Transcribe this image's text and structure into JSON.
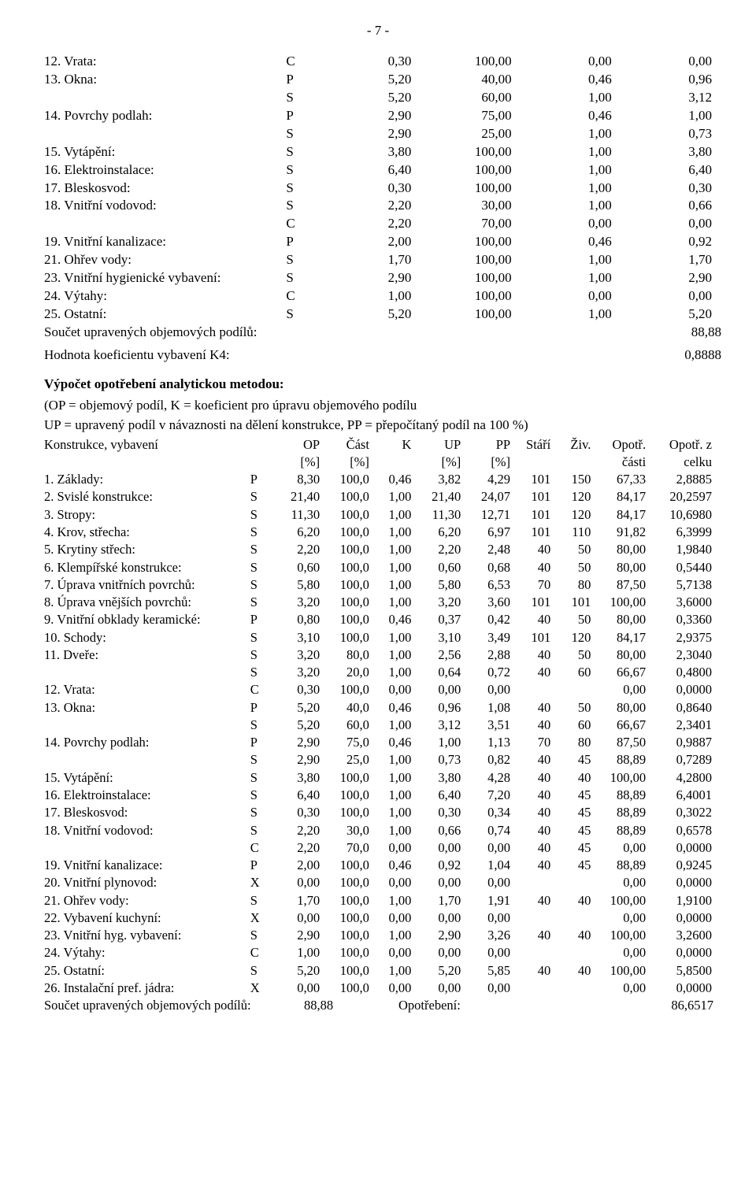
{
  "page_number": "- 7 -",
  "table1_rows": [
    {
      "label": "12. Vrata:",
      "code": "C",
      "v1": "0,30",
      "v2": "100,00",
      "v3": "0,00",
      "v4": "0,00"
    },
    {
      "label": "13. Okna:",
      "code": "P",
      "v1": "5,20",
      "v2": "40,00",
      "v3": "0,46",
      "v4": "0,96"
    },
    {
      "label": "",
      "code": "S",
      "v1": "5,20",
      "v2": "60,00",
      "v3": "1,00",
      "v4": "3,12"
    },
    {
      "label": "14. Povrchy podlah:",
      "code": "P",
      "v1": "2,90",
      "v2": "75,00",
      "v3": "0,46",
      "v4": "1,00"
    },
    {
      "label": "",
      "code": "S",
      "v1": "2,90",
      "v2": "25,00",
      "v3": "1,00",
      "v4": "0,73"
    },
    {
      "label": "15. Vytápění:",
      "code": "S",
      "v1": "3,80",
      "v2": "100,00",
      "v3": "1,00",
      "v4": "3,80"
    },
    {
      "label": "16. Elektroinstalace:",
      "code": "S",
      "v1": "6,40",
      "v2": "100,00",
      "v3": "1,00",
      "v4": "6,40"
    },
    {
      "label": "17. Bleskosvod:",
      "code": "S",
      "v1": "0,30",
      "v2": "100,00",
      "v3": "1,00",
      "v4": "0,30"
    },
    {
      "label": "18. Vnitřní vodovod:",
      "code": "S",
      "v1": "2,20",
      "v2": "30,00",
      "v3": "1,00",
      "v4": "0,66"
    },
    {
      "label": "",
      "code": "C",
      "v1": "2,20",
      "v2": "70,00",
      "v3": "0,00",
      "v4": "0,00"
    },
    {
      "label": "19. Vnitřní kanalizace:",
      "code": "P",
      "v1": "2,00",
      "v2": "100,00",
      "v3": "0,46",
      "v4": "0,92"
    },
    {
      "label": "21. Ohřev vody:",
      "code": "S",
      "v1": "1,70",
      "v2": "100,00",
      "v3": "1,00",
      "v4": "1,70"
    },
    {
      "label": "23. Vnitřní hygienické vybavení:",
      "code": "S",
      "v1": "2,90",
      "v2": "100,00",
      "v3": "1,00",
      "v4": "2,90"
    },
    {
      "label": "24. Výtahy:",
      "code": "C",
      "v1": "1,00",
      "v2": "100,00",
      "v3": "0,00",
      "v4": "0,00"
    },
    {
      "label": "25. Ostatní:",
      "code": "S",
      "v1": "5,20",
      "v2": "100,00",
      "v3": "1,00",
      "v4": "5,20"
    }
  ],
  "sum_line1_label": "Součet upravených objemových podílů:",
  "sum_line1_value": "88,88",
  "k4_label": "Hodnota koeficientu vybavení K4:",
  "k4_value": "0,8888",
  "calc_title": "Výpočet opotřebení analytickou metodou:",
  "note_line1": "(OP = objemový podíl, K = koeficient pro úpravu objemového podílu",
  "note_line2": "UP = upravený podíl v návaznosti na dělení konstrukce, PP = přepočítaný podíl na 100 %)",
  "t2_header1": [
    "Konstrukce, vybavení",
    "",
    "OP",
    "Část",
    "K",
    "UP",
    "PP",
    "Stáří",
    "Živ.",
    "Opotř.",
    "Opotř. z"
  ],
  "t2_header2": [
    "",
    "",
    "[%]",
    "[%]",
    "",
    "[%]",
    "[%]",
    "",
    "",
    "části",
    "celku"
  ],
  "table2_rows": [
    {
      "label": "1. Základy:",
      "code": "P",
      "op": "8,30",
      "cast": "100,0",
      "k": "0,46",
      "up": "3,82",
      "pp": "4,29",
      "stari": "101",
      "ziv": "150",
      "opotrc": "67,33",
      "opotrz": "2,8885"
    },
    {
      "label": "2. Svislé konstrukce:",
      "code": "S",
      "op": "21,40",
      "cast": "100,0",
      "k": "1,00",
      "up": "21,40",
      "pp": "24,07",
      "stari": "101",
      "ziv": "120",
      "opotrc": "84,17",
      "opotrz": "20,2597"
    },
    {
      "label": "3. Stropy:",
      "code": "S",
      "op": "11,30",
      "cast": "100,0",
      "k": "1,00",
      "up": "11,30",
      "pp": "12,71",
      "stari": "101",
      "ziv": "120",
      "opotrc": "84,17",
      "opotrz": "10,6980"
    },
    {
      "label": "4. Krov, střecha:",
      "code": "S",
      "op": "6,20",
      "cast": "100,0",
      "k": "1,00",
      "up": "6,20",
      "pp": "6,97",
      "stari": "101",
      "ziv": "110",
      "opotrc": "91,82",
      "opotrz": "6,3999"
    },
    {
      "label": "5. Krytiny střech:",
      "code": "S",
      "op": "2,20",
      "cast": "100,0",
      "k": "1,00",
      "up": "2,20",
      "pp": "2,48",
      "stari": "40",
      "ziv": "50",
      "opotrc": "80,00",
      "opotrz": "1,9840"
    },
    {
      "label": "6. Klempířské konstrukce:",
      "code": "S",
      "op": "0,60",
      "cast": "100,0",
      "k": "1,00",
      "up": "0,60",
      "pp": "0,68",
      "stari": "40",
      "ziv": "50",
      "opotrc": "80,00",
      "opotrz": "0,5440"
    },
    {
      "label": "7. Úprava vnitřních povrchů:",
      "code": "S",
      "op": "5,80",
      "cast": "100,0",
      "k": "1,00",
      "up": "5,80",
      "pp": "6,53",
      "stari": "70",
      "ziv": "80",
      "opotrc": "87,50",
      "opotrz": "5,7138"
    },
    {
      "label": "8. Úprava vnějších povrchů:",
      "code": "S",
      "op": "3,20",
      "cast": "100,0",
      "k": "1,00",
      "up": "3,20",
      "pp": "3,60",
      "stari": "101",
      "ziv": "101",
      "opotrc": "100,00",
      "opotrz": "3,6000"
    },
    {
      "label": "9. Vnitřní obklady keramické:",
      "code": "P",
      "op": "0,80",
      "cast": "100,0",
      "k": "0,46",
      "up": "0,37",
      "pp": "0,42",
      "stari": "40",
      "ziv": "50",
      "opotrc": "80,00",
      "opotrz": "0,3360"
    },
    {
      "label": "10. Schody:",
      "code": "S",
      "op": "3,10",
      "cast": "100,0",
      "k": "1,00",
      "up": "3,10",
      "pp": "3,49",
      "stari": "101",
      "ziv": "120",
      "opotrc": "84,17",
      "opotrz": "2,9375"
    },
    {
      "label": "11. Dveře:",
      "code": "S",
      "op": "3,20",
      "cast": "80,0",
      "k": "1,00",
      "up": "2,56",
      "pp": "2,88",
      "stari": "40",
      "ziv": "50",
      "opotrc": "80,00",
      "opotrz": "2,3040"
    },
    {
      "label": "",
      "code": "S",
      "op": "3,20",
      "cast": "20,0",
      "k": "1,00",
      "up": "0,64",
      "pp": "0,72",
      "stari": "40",
      "ziv": "60",
      "opotrc": "66,67",
      "opotrz": "0,4800"
    },
    {
      "label": "12. Vrata:",
      "code": "C",
      "op": "0,30",
      "cast": "100,0",
      "k": "0,00",
      "up": "0,00",
      "pp": "0,00",
      "stari": "",
      "ziv": "",
      "opotrc": "0,00",
      "opotrz": "0,0000"
    },
    {
      "label": "13. Okna:",
      "code": "P",
      "op": "5,20",
      "cast": "40,0",
      "k": "0,46",
      "up": "0,96",
      "pp": "1,08",
      "stari": "40",
      "ziv": "50",
      "opotrc": "80,00",
      "opotrz": "0,8640"
    },
    {
      "label": "",
      "code": "S",
      "op": "5,20",
      "cast": "60,0",
      "k": "1,00",
      "up": "3,12",
      "pp": "3,51",
      "stari": "40",
      "ziv": "60",
      "opotrc": "66,67",
      "opotrz": "2,3401"
    },
    {
      "label": "14. Povrchy podlah:",
      "code": "P",
      "op": "2,90",
      "cast": "75,0",
      "k": "0,46",
      "up": "1,00",
      "pp": "1,13",
      "stari": "70",
      "ziv": "80",
      "opotrc": "87,50",
      "opotrz": "0,9887"
    },
    {
      "label": "",
      "code": "S",
      "op": "2,90",
      "cast": "25,0",
      "k": "1,00",
      "up": "0,73",
      "pp": "0,82",
      "stari": "40",
      "ziv": "45",
      "opotrc": "88,89",
      "opotrz": "0,7289"
    },
    {
      "label": "15. Vytápění:",
      "code": "S",
      "op": "3,80",
      "cast": "100,0",
      "k": "1,00",
      "up": "3,80",
      "pp": "4,28",
      "stari": "40",
      "ziv": "40",
      "opotrc": "100,00",
      "opotrz": "4,2800"
    },
    {
      "label": "16. Elektroinstalace:",
      "code": "S",
      "op": "6,40",
      "cast": "100,0",
      "k": "1,00",
      "up": "6,40",
      "pp": "7,20",
      "stari": "40",
      "ziv": "45",
      "opotrc": "88,89",
      "opotrz": "6,4001"
    },
    {
      "label": "17. Bleskosvod:",
      "code": "S",
      "op": "0,30",
      "cast": "100,0",
      "k": "1,00",
      "up": "0,30",
      "pp": "0,34",
      "stari": "40",
      "ziv": "45",
      "opotrc": "88,89",
      "opotrz": "0,3022"
    },
    {
      "label": "18. Vnitřní vodovod:",
      "code": "S",
      "op": "2,20",
      "cast": "30,0",
      "k": "1,00",
      "up": "0,66",
      "pp": "0,74",
      "stari": "40",
      "ziv": "45",
      "opotrc": "88,89",
      "opotrz": "0,6578"
    },
    {
      "label": "",
      "code": "C",
      "op": "2,20",
      "cast": "70,0",
      "k": "0,00",
      "up": "0,00",
      "pp": "0,00",
      "stari": "40",
      "ziv": "45",
      "opotrc": "0,00",
      "opotrz": "0,0000"
    },
    {
      "label": "19. Vnitřní kanalizace:",
      "code": "P",
      "op": "2,00",
      "cast": "100,0",
      "k": "0,46",
      "up": "0,92",
      "pp": "1,04",
      "stari": "40",
      "ziv": "45",
      "opotrc": "88,89",
      "opotrz": "0,9245"
    },
    {
      "label": "20. Vnitřní plynovod:",
      "code": "X",
      "op": "0,00",
      "cast": "100,0",
      "k": "0,00",
      "up": "0,00",
      "pp": "0,00",
      "stari": "",
      "ziv": "",
      "opotrc": "0,00",
      "opotrz": "0,0000"
    },
    {
      "label": "21. Ohřev vody:",
      "code": "S",
      "op": "1,70",
      "cast": "100,0",
      "k": "1,00",
      "up": "1,70",
      "pp": "1,91",
      "stari": "40",
      "ziv": "40",
      "opotrc": "100,00",
      "opotrz": "1,9100"
    },
    {
      "label": "22. Vybavení kuchyní:",
      "code": "X",
      "op": "0,00",
      "cast": "100,0",
      "k": "0,00",
      "up": "0,00",
      "pp": "0,00",
      "stari": "",
      "ziv": "",
      "opotrc": "0,00",
      "opotrz": "0,0000"
    },
    {
      "label": "23. Vnitřní hyg. vybavení:",
      "code": "S",
      "op": "2,90",
      "cast": "100,0",
      "k": "1,00",
      "up": "2,90",
      "pp": "3,26",
      "stari": "40",
      "ziv": "40",
      "opotrc": "100,00",
      "opotrz": "3,2600"
    },
    {
      "label": "24. Výtahy:",
      "code": "C",
      "op": "1,00",
      "cast": "100,0",
      "k": "0,00",
      "up": "0,00",
      "pp": "0,00",
      "stari": "",
      "ziv": "",
      "opotrc": "0,00",
      "opotrz": "0,0000"
    },
    {
      "label": "25. Ostatní:",
      "code": "S",
      "op": "5,20",
      "cast": "100,0",
      "k": "1,00",
      "up": "5,20",
      "pp": "5,85",
      "stari": "40",
      "ziv": "40",
      "opotrc": "100,00",
      "opotrz": "5,8500"
    },
    {
      "label": "26. Instalační pref. jádra:",
      "code": "X",
      "op": "0,00",
      "cast": "100,0",
      "k": "0,00",
      "up": "0,00",
      "pp": "0,00",
      "stari": "",
      "ziv": "",
      "opotrc": "0,00",
      "opotrz": "0,0000"
    }
  ],
  "footer_sum_label": "Součet upravených objemových podílů:",
  "footer_sum_val": "88,88",
  "footer_op_label": "Opotřebení:",
  "footer_op_val": "86,6517"
}
